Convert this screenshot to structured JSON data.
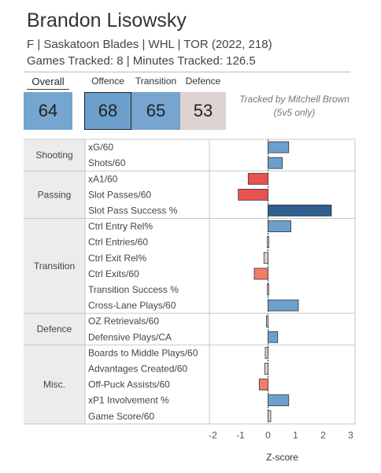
{
  "header": {
    "name": "Brandon Lisowsky",
    "info": "F | Saskatoon Blades | WHL | TOR (2022, 218)",
    "tracked": "Games Tracked: 8 | Minutes Tracked: 126.5"
  },
  "ratings": {
    "overall_label": "Overall",
    "overall": "64",
    "offence_label": "Offence",
    "offence": "68",
    "transition_label": "Transition",
    "transition": "65",
    "defence_label": "Defence",
    "defence": "53"
  },
  "colors": {
    "overall": "#76a5cf",
    "offence": "#6c9fcc",
    "transition": "#76a5cf",
    "defence": "#ddd3d0",
    "bar_pos_strong": "#2e5f8f",
    "bar_pos": "#6c9fcc",
    "bar_pos_light": "#aac7e2",
    "bar_neg_strong": "#e8534f",
    "bar_neg": "#ef7d6a",
    "bar_neutral": "#d9d0ce"
  },
  "note": "Tracked by Mitchell Brown (5v5 only)",
  "chart_data": {
    "type": "bar",
    "orientation": "horizontal",
    "xlabel": "Z-score",
    "xlim": [
      -2.5,
      3.1
    ],
    "xticks": [
      "-2",
      "-1",
      "0",
      "1",
      "2",
      "3"
    ],
    "xtick_values": [
      -2,
      -1,
      0,
      1,
      2,
      3
    ],
    "groups": [
      {
        "name": "Shooting",
        "metrics": [
          {
            "label": "xG/60",
            "value": 0.75
          },
          {
            "label": "Shots/60",
            "value": 0.52
          }
        ]
      },
      {
        "name": "Passing",
        "metrics": [
          {
            "label": "xA1/60",
            "value": -0.72
          },
          {
            "label": "Slot Passes/60",
            "value": -1.08
          },
          {
            "label": "Slot Pass Success %",
            "value": 2.3
          }
        ]
      },
      {
        "name": "Transition",
        "metrics": [
          {
            "label": "Ctrl Entry Rel%",
            "value": 0.83
          },
          {
            "label": "Ctrl Entries/60",
            "value": 0.0
          },
          {
            "label": "Ctrl Exit Rel%",
            "value": -0.15
          },
          {
            "label": "Ctrl Exits/60",
            "value": -0.5
          },
          {
            "label": "Transition Success %",
            "value": 0.0
          },
          {
            "label": "Cross-Lane Plays/60",
            "value": 1.1
          }
        ]
      },
      {
        "name": "Defence",
        "metrics": [
          {
            "label": "OZ Retrievals/60",
            "value": -0.06
          },
          {
            "label": "Defensive Plays/CA",
            "value": 0.35
          }
        ]
      },
      {
        "name": "Misc.",
        "metrics": [
          {
            "label": "Boards to Middle Plays/60",
            "value": -0.1
          },
          {
            "label": "Advantages Created/60",
            "value": -0.12
          },
          {
            "label": "Off-Puck Assists/60",
            "value": -0.32
          },
          {
            "label": "xP1 Involvement %",
            "value": 0.75
          },
          {
            "label": "Game Score/60",
            "value": 0.1
          }
        ]
      }
    ]
  }
}
